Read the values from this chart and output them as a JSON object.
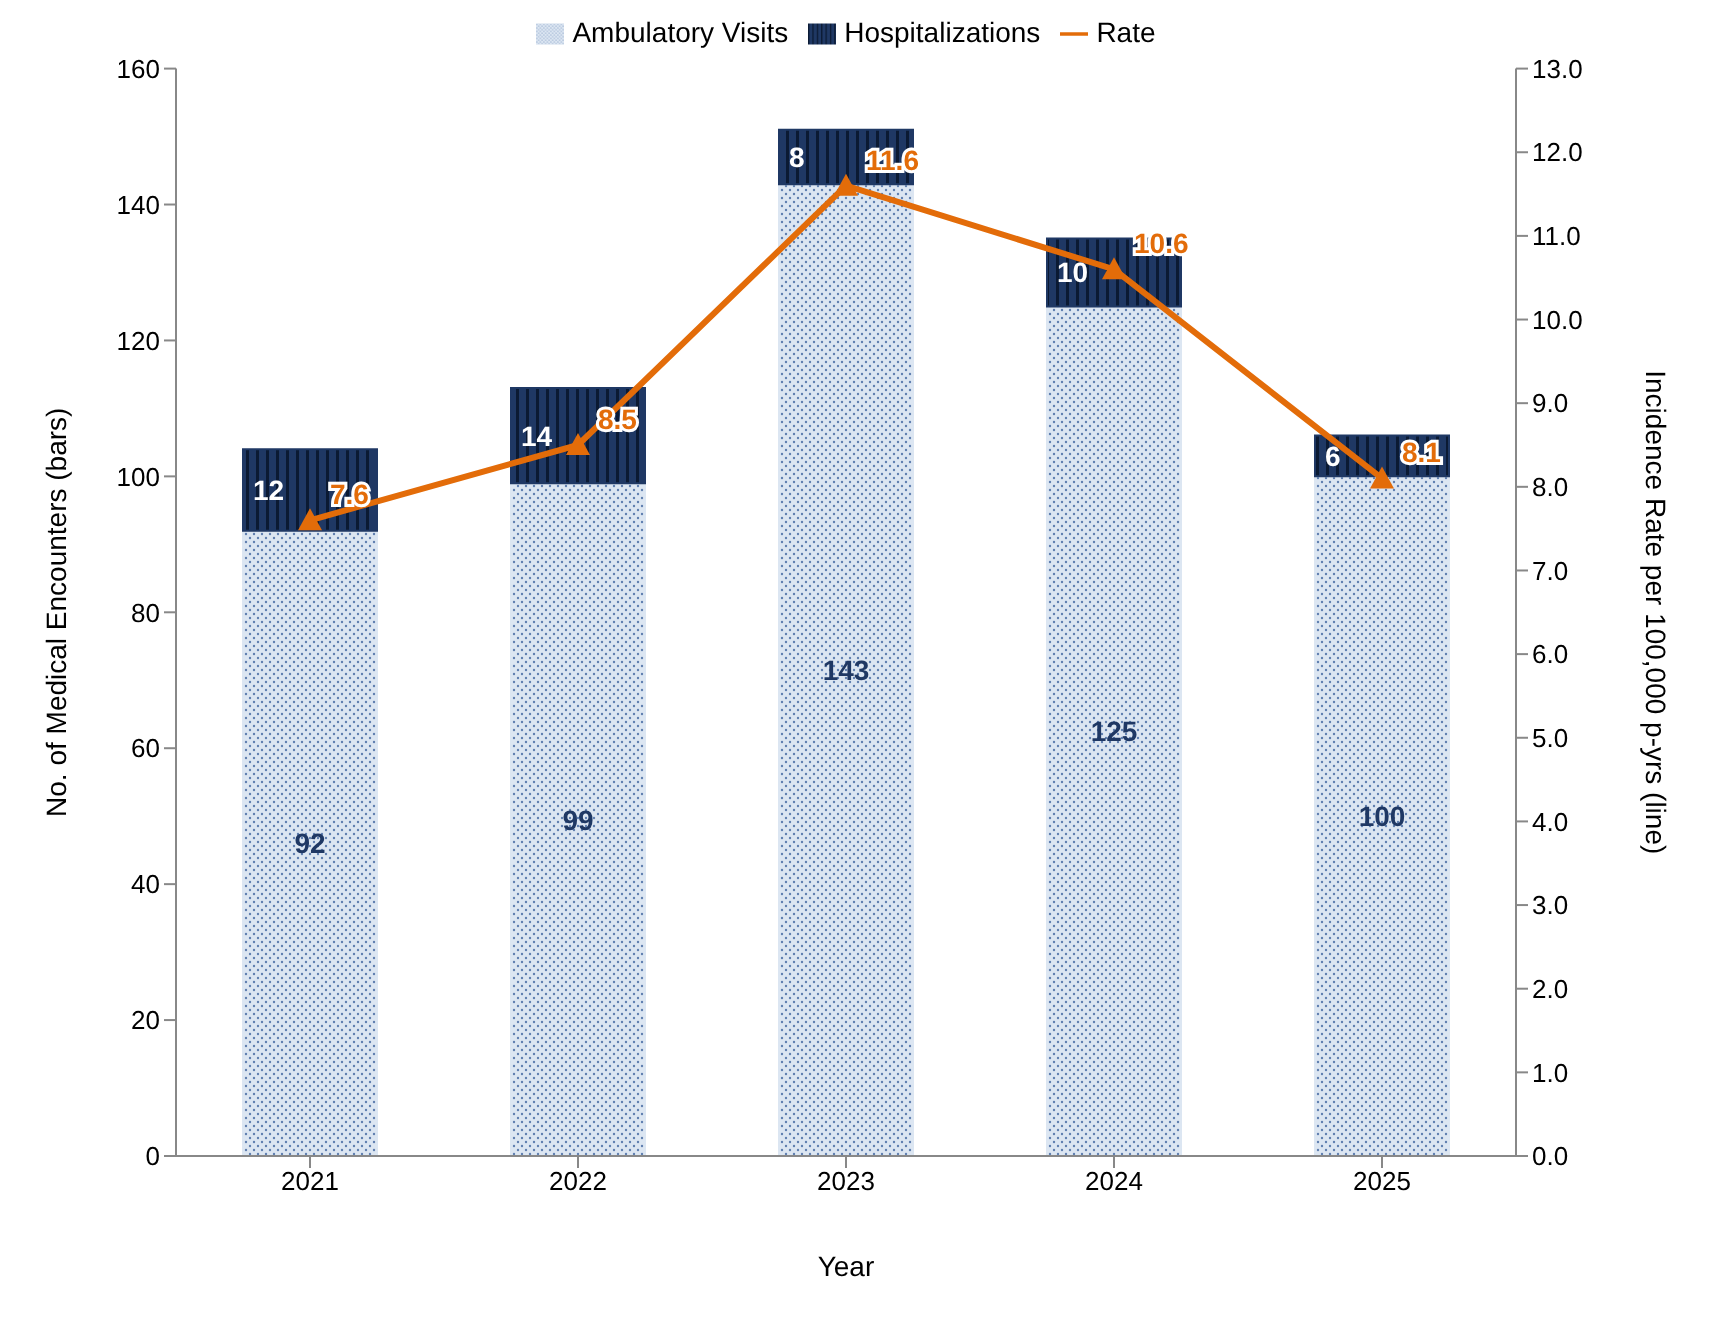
{
  "chart_data": {
    "type": "bar",
    "stacked": true,
    "xlabel": "Year",
    "ylabel": "No. of Medical Encounters (bars)",
    "y2label": "Incidence Rate per 100,000 p-yrs (line)",
    "categories": [
      "2021",
      "2022",
      "2023",
      "2024",
      "2025"
    ],
    "series": [
      {
        "name": "Ambulatory Visits",
        "color": "#dce6f2",
        "values": [
          92,
          99,
          143,
          125,
          100
        ]
      },
      {
        "name": "Hospitalizations",
        "color": "#1f3864",
        "values": [
          12,
          14,
          8,
          10,
          6
        ]
      },
      {
        "name": "Rate",
        "type": "line",
        "axis": "y2",
        "color": "#e36c09",
        "marker": "triangle",
        "values": [
          7.6,
          8.5,
          11.6,
          10.6,
          8.1
        ]
      }
    ],
    "ylim": [
      0,
      160
    ],
    "yticks": [
      0,
      20,
      40,
      60,
      80,
      100,
      120,
      140,
      160
    ],
    "y2lim": [
      0,
      13
    ],
    "y2ticks": [
      {
        "value": 0,
        "label": "0.0"
      },
      {
        "value": 1,
        "label": "1.0"
      },
      {
        "value": 2,
        "label": "2.0"
      },
      {
        "value": 3,
        "label": "3.0"
      },
      {
        "value": 4,
        "label": "4.0"
      },
      {
        "value": 5,
        "label": "5.0"
      },
      {
        "value": 6,
        "label": "6.0"
      },
      {
        "value": 7,
        "label": "7.0"
      },
      {
        "value": 8,
        "label": "8.0"
      },
      {
        "value": 9,
        "label": "9.0"
      },
      {
        "value": 10,
        "label": "10.0"
      },
      {
        "value": 11,
        "label": "11.0"
      },
      {
        "value": 12,
        "label": "12.0"
      },
      {
        "value": 13,
        "label": "13.0"
      }
    ],
    "data_labels": true,
    "grid": false,
    "legend": "top"
  }
}
